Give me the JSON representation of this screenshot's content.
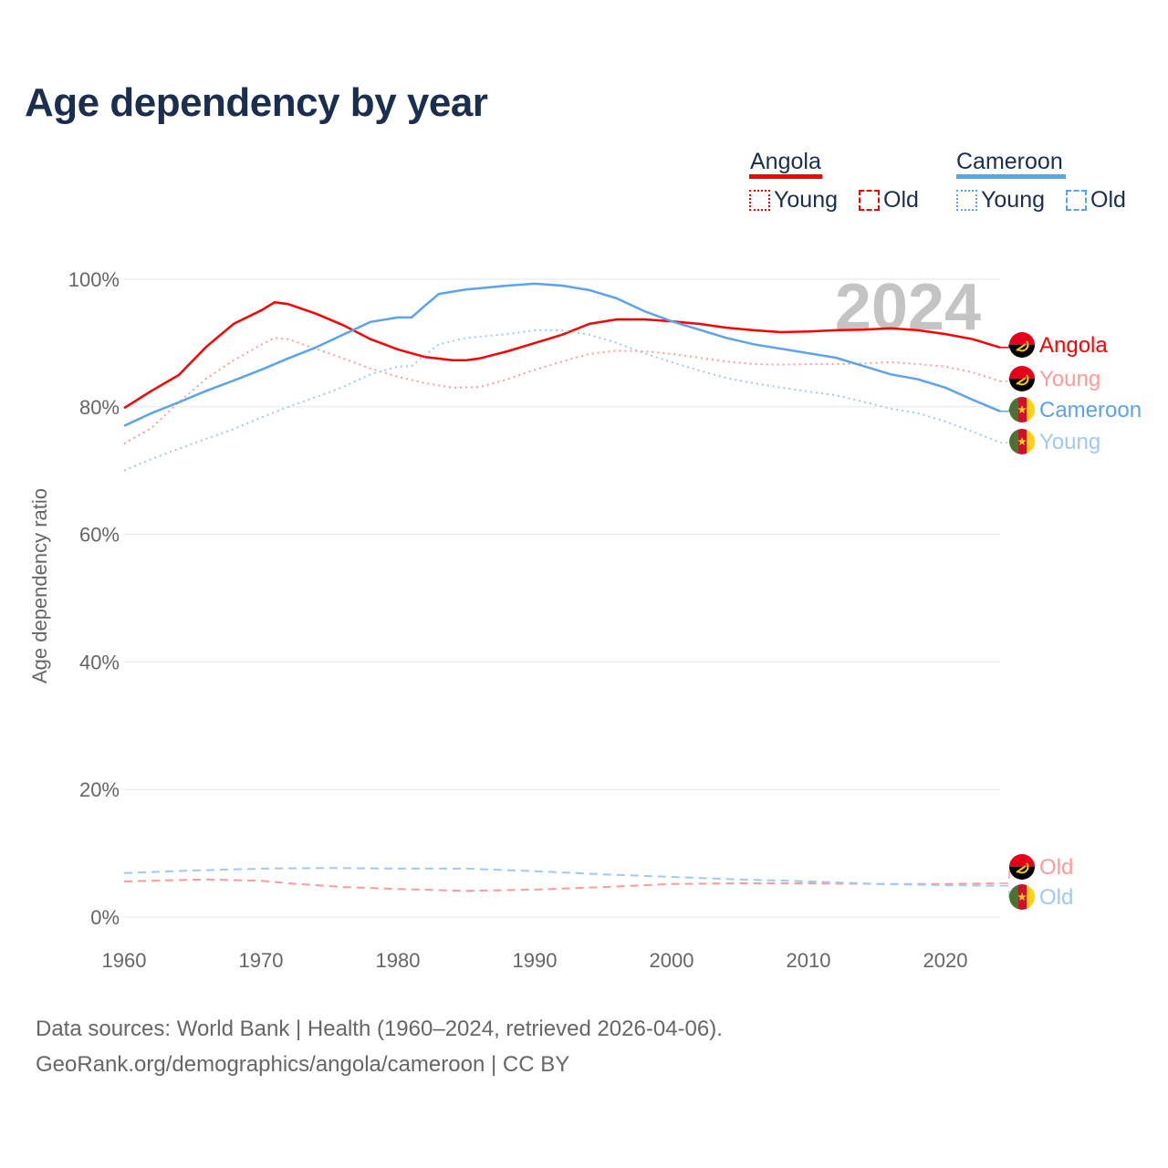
{
  "title": "Age dependency by year",
  "legend": {
    "groups": [
      {
        "name": "Angola",
        "color": "#ff0000",
        "items": [
          "Young",
          "Old"
        ]
      },
      {
        "name": "Cameroon",
        "color": "#5ba3ec",
        "items": [
          "Young",
          "Old"
        ]
      }
    ]
  },
  "footer": {
    "line1": "Data sources: World Bank | Health (1960–2024, retrieved 2026-04-06).",
    "line2": "GeoRank.org/demographics/angola/cameroon | CC BY"
  },
  "chart_data": {
    "type": "line",
    "title": "Age dependency by year",
    "xlabel": "",
    "ylabel": "Age dependency ratio",
    "xlim": [
      1960,
      2024
    ],
    "ylim": [
      0,
      100
    ],
    "xticks": [
      "1960",
      "1970",
      "1980",
      "1990",
      "2000",
      "2010",
      "2020"
    ],
    "yticks": [
      "0%",
      "20%",
      "40%",
      "60%",
      "80%",
      "100%"
    ],
    "year_label": "2024",
    "grid": true,
    "series": [
      {
        "name": "Angola",
        "end_label": "Angola",
        "country": "angola",
        "style": "solid",
        "color": "#ff0000",
        "x": [
          1960,
          1962,
          1964,
          1966,
          1968,
          1970,
          1971,
          1972,
          1974,
          1976,
          1978,
          1980,
          1982,
          1984,
          1985,
          1986,
          1988,
          1990,
          1992,
          1994,
          1996,
          1998,
          2000,
          2002,
          2004,
          2006,
          2008,
          2010,
          2012,
          2014,
          2016,
          2018,
          2020,
          2022,
          2024
        ],
        "y": [
          79.8,
          82.5,
          85,
          89.4,
          93,
          95.1,
          96.4,
          96.1,
          94.6,
          92.8,
          90.6,
          89,
          87.8,
          87.3,
          87.3,
          87.6,
          88.7,
          90,
          91.3,
          93,
          93.7,
          93.7,
          93.4,
          93,
          92.4,
          92,
          91.7,
          91.8,
          92,
          92.1,
          92.3,
          92,
          91.4,
          90.6,
          89.3
        ]
      },
      {
        "name": "Angola Young",
        "end_label": "Young",
        "country": "angola",
        "style": "dotted",
        "color": "#ff9a9a",
        "x": [
          1960,
          1962,
          1964,
          1966,
          1968,
          1970,
          1971,
          1972,
          1974,
          1976,
          1978,
          1980,
          1982,
          1984,
          1986,
          1988,
          1990,
          1992,
          1994,
          1996,
          1998,
          2000,
          2002,
          2004,
          2006,
          2008,
          2010,
          2012,
          2014,
          2016,
          2018,
          2020,
          2022,
          2024
        ],
        "y": [
          74.2,
          76.7,
          80.7,
          84.4,
          87.3,
          89.7,
          90.8,
          90.6,
          89.1,
          87.6,
          86,
          84.7,
          83.7,
          83,
          83.1,
          84.3,
          85.8,
          87.1,
          88.3,
          88.8,
          88.7,
          88.3,
          87.7,
          87.1,
          86.7,
          86.6,
          86.7,
          86.7,
          86.8,
          87,
          86.7,
          86.3,
          85.4,
          84
        ]
      },
      {
        "name": "Cameroon",
        "end_label": "Cameroon",
        "country": "cameroon",
        "style": "solid",
        "color": "#5ba3ec",
        "x": [
          1960,
          1962,
          1964,
          1966,
          1968,
          1970,
          1972,
          1974,
          1976,
          1978,
          1980,
          1981,
          1982,
          1983,
          1985,
          1988,
          1990,
          1992,
          1994,
          1996,
          1998,
          2000,
          2002,
          2004,
          2006,
          2008,
          2010,
          2012,
          2014,
          2016,
          2018,
          2020,
          2022,
          2024
        ],
        "y": [
          77,
          79,
          80.7,
          82.5,
          84.1,
          85.8,
          87.6,
          89.3,
          91.3,
          93.3,
          94,
          94,
          95.9,
          97.7,
          98.4,
          99,
          99.3,
          99,
          98.3,
          97,
          95,
          93.4,
          92.1,
          90.8,
          89.8,
          89.1,
          88.4,
          87.7,
          86.4,
          85.1,
          84.3,
          83,
          81.1,
          79.3
        ]
      },
      {
        "name": "Cameroon Young",
        "end_label": "Young",
        "country": "cameroon",
        "style": "dotted",
        "color": "#9fc8f3",
        "x": [
          1960,
          1962,
          1964,
          1966,
          1968,
          1970,
          1972,
          1974,
          1976,
          1978,
          1980,
          1981,
          1982,
          1983,
          1985,
          1988,
          1990,
          1992,
          1994,
          1996,
          1998,
          2000,
          2002,
          2004,
          2006,
          2008,
          2010,
          2012,
          2014,
          2016,
          2018,
          2020,
          2022,
          2024
        ],
        "y": [
          70,
          71.8,
          73.4,
          75,
          76.5,
          78.3,
          80,
          81.5,
          83.1,
          85.1,
          86.3,
          86.4,
          88.1,
          89.8,
          90.8,
          91.4,
          92,
          92,
          91.3,
          90,
          88.4,
          87,
          85.7,
          84.5,
          83.7,
          83,
          82.4,
          81.8,
          80.8,
          79.7,
          79,
          77.7,
          76.1,
          74.4
        ]
      },
      {
        "name": "Angola Old",
        "end_label": "Old",
        "country": "angola",
        "style": "dashed",
        "color": "#ff9a9a",
        "x": [
          1960,
          1966,
          1970,
          1972,
          1976,
          1980,
          1985,
          1990,
          1995,
          2000,
          2005,
          2010,
          2015,
          2020,
          2024
        ],
        "y": [
          5.6,
          5.9,
          5.7,
          5.3,
          4.7,
          4.4,
          4.1,
          4.3,
          4.7,
          5.2,
          5.3,
          5.3,
          5.2,
          5.2,
          5.3
        ]
      },
      {
        "name": "Cameroon Old",
        "end_label": "Old",
        "country": "cameroon",
        "style": "dashed",
        "color": "#9fc8f3",
        "x": [
          1960,
          1965,
          1970,
          1975,
          1980,
          1985,
          1990,
          1995,
          2000,
          2005,
          2010,
          2015,
          2020,
          2024
        ],
        "y": [
          6.9,
          7.3,
          7.6,
          7.7,
          7.6,
          7.6,
          7.2,
          6.7,
          6.3,
          5.9,
          5.6,
          5.2,
          5,
          4.9
        ]
      }
    ]
  }
}
